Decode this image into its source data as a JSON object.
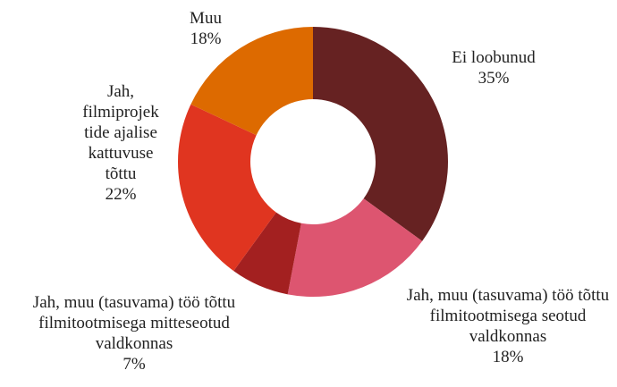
{
  "chart_data": {
    "type": "donut",
    "categories": [
      "Ei loobunud",
      "Jah, muu (tasuvama) töö tõttu filmitootmisega seotud valdkonnas",
      "Jah, muu (tasuvama) töö tõttu filmitootmisega mitteseotud valdkonnas",
      "Jah, filmiprojektide ajalise kattuvuse tõttu",
      "Muu"
    ],
    "values": [
      35,
      18,
      7,
      22,
      18
    ],
    "value_labels": [
      "35%",
      "18%",
      "7%",
      "22%",
      "18%"
    ],
    "colors": [
      "#662222",
      "#dd5570",
      "#a32020",
      "#e03520",
      "#dd6a00"
    ]
  }
}
